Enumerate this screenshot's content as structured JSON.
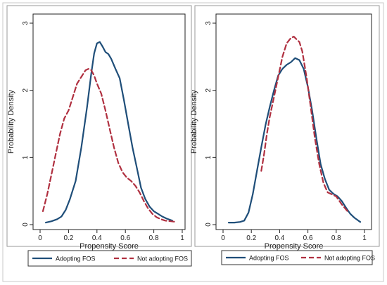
{
  "chart_data": [
    {
      "type": "line",
      "title": "",
      "xlabel": "Propensity Score",
      "ylabel": "Probability Density",
      "xlim": [
        0,
        1
      ],
      "ylim": [
        0,
        3
      ],
      "xticks": [
        0,
        0.2,
        0.4,
        0.6,
        0.8,
        1
      ],
      "xtick_labels": [
        "0",
        "0.2",
        "0.4",
        "0.6",
        "0.8",
        "1"
      ],
      "yticks": [
        0,
        1,
        2,
        3
      ],
      "ytick_labels": [
        "0",
        "1",
        "2",
        "3"
      ],
      "grid": false,
      "legend_position": "bottom",
      "series": [
        {
          "name": "Adopting FOS",
          "color": "#1f4e79",
          "style": "solid",
          "x": [
            0.04,
            0.08,
            0.12,
            0.15,
            0.18,
            0.21,
            0.25,
            0.29,
            0.33,
            0.36,
            0.38,
            0.4,
            0.42,
            0.44,
            0.46,
            0.48,
            0.5,
            0.53,
            0.56,
            0.59,
            0.62,
            0.65,
            0.68,
            0.71,
            0.74,
            0.77,
            0.8,
            0.83,
            0.86,
            0.89,
            0.93
          ],
          "y": [
            0.03,
            0.05,
            0.08,
            0.12,
            0.22,
            0.38,
            0.65,
            1.15,
            1.75,
            2.25,
            2.55,
            2.7,
            2.72,
            2.65,
            2.57,
            2.54,
            2.47,
            2.32,
            2.18,
            1.85,
            1.5,
            1.15,
            0.85,
            0.55,
            0.38,
            0.27,
            0.2,
            0.16,
            0.12,
            0.09,
            0.06
          ]
        },
        {
          "name": "Not adopting FOS",
          "color": "#b03040",
          "style": "dashed",
          "x": [
            0.02,
            0.05,
            0.08,
            0.11,
            0.14,
            0.17,
            0.2,
            0.23,
            0.26,
            0.29,
            0.32,
            0.34,
            0.36,
            0.38,
            0.4,
            0.43,
            0.46,
            0.49,
            0.52,
            0.55,
            0.58,
            0.61,
            0.64,
            0.67,
            0.7,
            0.73,
            0.76,
            0.79,
            0.82,
            0.85,
            0.88,
            0.92,
            0.96
          ],
          "y": [
            0.2,
            0.45,
            0.75,
            1.05,
            1.35,
            1.58,
            1.7,
            1.9,
            2.1,
            2.2,
            2.3,
            2.32,
            2.3,
            2.22,
            2.1,
            1.95,
            1.7,
            1.42,
            1.15,
            0.92,
            0.78,
            0.7,
            0.65,
            0.58,
            0.48,
            0.35,
            0.24,
            0.16,
            0.11,
            0.08,
            0.06,
            0.05,
            0.04
          ]
        }
      ]
    },
    {
      "type": "line",
      "title": "",
      "xlabel": "Propensity Score",
      "ylabel": "Probability Density",
      "xlim": [
        0,
        1
      ],
      "ylim": [
        0,
        3
      ],
      "xticks": [
        0,
        0.2,
        0.4,
        0.6,
        0.8,
        1
      ],
      "xtick_labels": [
        "0",
        "0.2",
        "0.4",
        "0.6",
        "0.8",
        "1"
      ],
      "yticks": [
        0,
        1,
        2,
        3
      ],
      "ytick_labels": [
        "0",
        "1",
        "2",
        "3"
      ],
      "grid": false,
      "legend_position": "bottom",
      "series": [
        {
          "name": "Adopting FOS",
          "color": "#1f4e79",
          "style": "solid",
          "x": [
            0.04,
            0.08,
            0.12,
            0.15,
            0.18,
            0.21,
            0.24,
            0.27,
            0.3,
            0.33,
            0.36,
            0.39,
            0.42,
            0.45,
            0.48,
            0.51,
            0.54,
            0.57,
            0.6,
            0.63,
            0.66,
            0.69,
            0.72,
            0.75,
            0.78,
            0.81,
            0.84,
            0.87,
            0.9,
            0.93,
            0.97
          ],
          "y": [
            0.03,
            0.03,
            0.04,
            0.06,
            0.18,
            0.45,
            0.8,
            1.15,
            1.48,
            1.75,
            2.0,
            2.22,
            2.32,
            2.38,
            2.42,
            2.48,
            2.45,
            2.32,
            2.05,
            1.7,
            1.28,
            0.9,
            0.68,
            0.52,
            0.46,
            0.42,
            0.35,
            0.25,
            0.16,
            0.1,
            0.04
          ]
        },
        {
          "name": "Not adopting FOS",
          "color": "#b03040",
          "style": "dashed",
          "x": [
            0.27,
            0.29,
            0.31,
            0.33,
            0.36,
            0.39,
            0.42,
            0.45,
            0.48,
            0.5,
            0.52,
            0.54,
            0.56,
            0.59,
            0.62,
            0.65,
            0.68,
            0.71,
            0.74,
            0.77,
            0.8,
            0.84,
            0.88
          ],
          "y": [
            0.8,
            1.05,
            1.35,
            1.6,
            1.9,
            2.2,
            2.5,
            2.7,
            2.78,
            2.8,
            2.76,
            2.72,
            2.58,
            2.2,
            1.75,
            1.28,
            0.9,
            0.62,
            0.48,
            0.45,
            0.42,
            0.3,
            0.2
          ]
        }
      ]
    }
  ]
}
